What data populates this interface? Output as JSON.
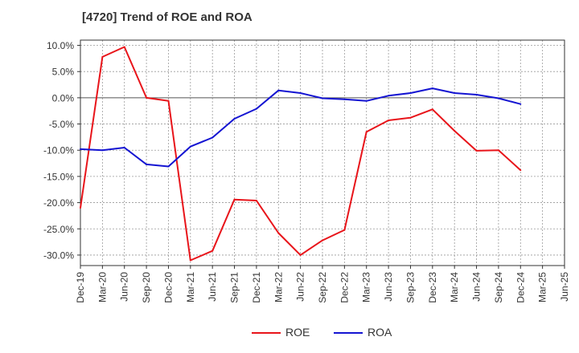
{
  "chart_data": {
    "type": "line",
    "title": "[4720]  Trend of ROE and ROA",
    "xlabel": "",
    "ylabel": "",
    "x": [
      "Dec-19",
      "Mar-20",
      "Jun-20",
      "Sep-20",
      "Dec-20",
      "Mar-21",
      "Jun-21",
      "Sep-21",
      "Dec-21",
      "Mar-22",
      "Jun-22",
      "Sep-22",
      "Dec-22",
      "Mar-23",
      "Jun-23",
      "Sep-23",
      "Dec-23",
      "Mar-24",
      "Jun-24",
      "Sep-24",
      "Dec-24",
      "Mar-25"
    ],
    "x_tick_labels": [
      "Dec-19",
      "Mar-20",
      "Jun-20",
      "Sep-20",
      "Dec-20",
      "Mar-21",
      "Jun-21",
      "Sep-21",
      "Dec-21",
      "Mar-22",
      "Jun-22",
      "Sep-22",
      "Dec-22",
      "Mar-23",
      "Jun-23",
      "Sep-23",
      "Dec-23",
      "Mar-24",
      "Jun-24",
      "Sep-24",
      "Dec-24",
      "Mar-25",
      "Jun-25"
    ],
    "ylim": [
      -32,
      11
    ],
    "y_ticks": [
      10,
      5,
      0,
      -5,
      -10,
      -15,
      -20,
      -25,
      -30
    ],
    "y_tick_labels": [
      "10.0%",
      "5.0%",
      "0.0%",
      "-5.0%",
      "-10.0%",
      "-15.0%",
      "-20.0%",
      "-25.0%",
      "-30.0%"
    ],
    "grid": true,
    "legend_position": "bottom",
    "series": [
      {
        "name": "ROE",
        "color": "#e8141a",
        "values": [
          -21.0,
          7.8,
          9.7,
          0.0,
          -0.6,
          -31.0,
          -29.2,
          -19.4,
          -19.6,
          -25.8,
          -30.0,
          -27.2,
          -25.2,
          -6.5,
          -4.3,
          -3.8,
          -2.2,
          -6.3,
          -10.1,
          -10.0,
          -13.8,
          null
        ]
      },
      {
        "name": "ROA",
        "color": "#1414d2",
        "values": [
          -9.8,
          -10.0,
          -9.5,
          -12.7,
          -13.1,
          -9.3,
          -7.6,
          -4.0,
          -2.1,
          1.4,
          0.9,
          -0.1,
          -0.3,
          -0.6,
          0.4,
          0.9,
          1.8,
          0.9,
          0.6,
          -0.1,
          -1.2,
          null
        ]
      }
    ]
  }
}
